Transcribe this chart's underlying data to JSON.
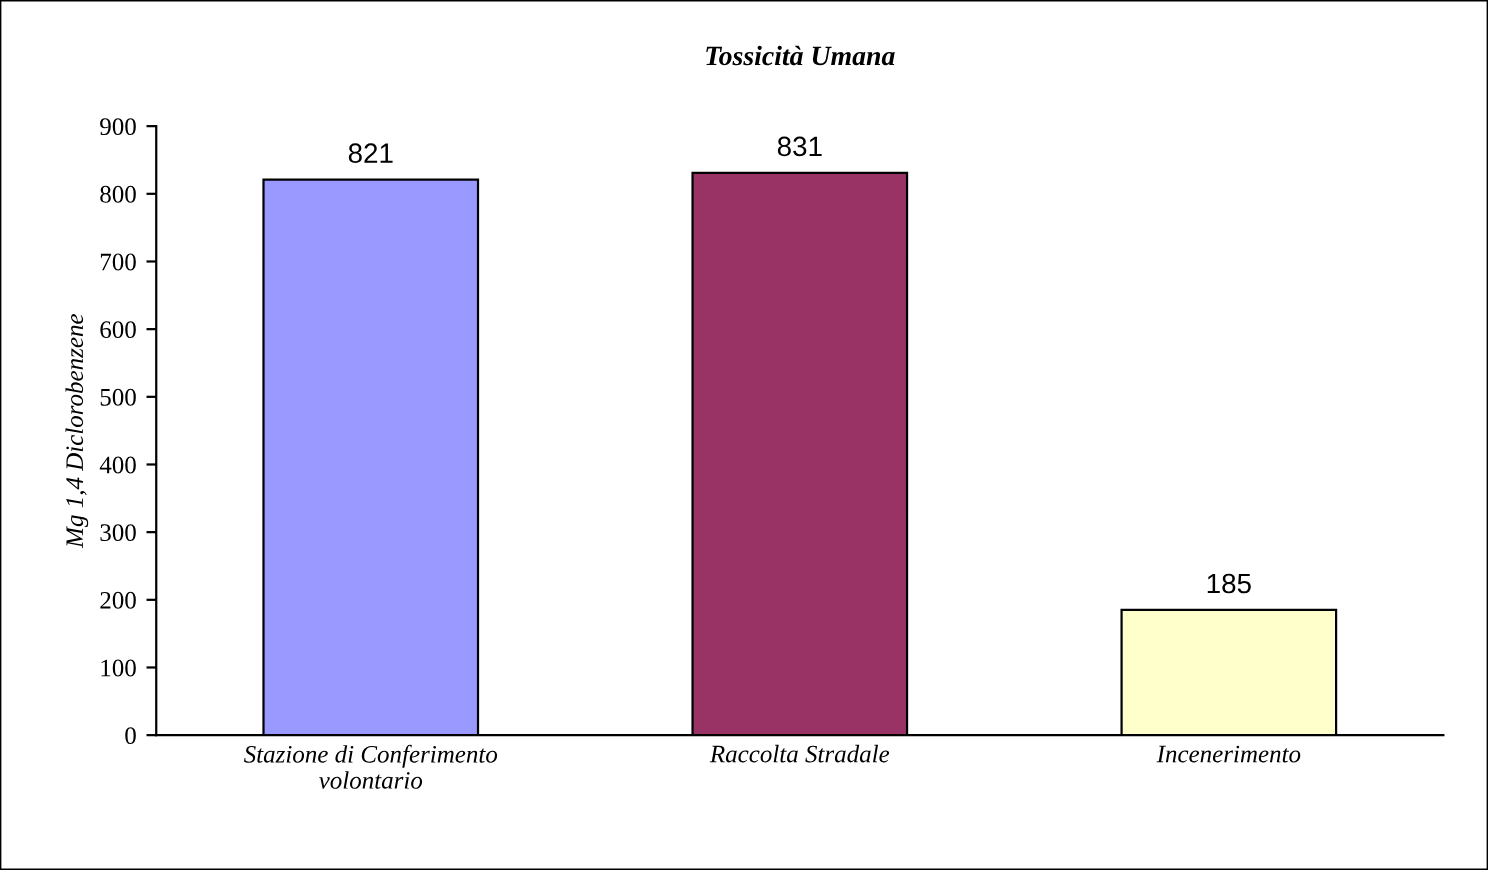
{
  "chart_data": {
    "type": "bar",
    "title": "Tossicità Umana",
    "ylabel": "Mg 1,4 Diclorobenzene",
    "categories": [
      "Stazione di Conferimento\nvolontario",
      "Raccolta Stradale",
      "Incenerimento"
    ],
    "values": [
      821,
      831,
      185
    ],
    "colors": [
      "#9999ff",
      "#993366",
      "#ffffcc"
    ],
    "ylim": [
      0,
      900
    ],
    "yticks": [
      0,
      100,
      200,
      300,
      400,
      500,
      600,
      700,
      800,
      900
    ],
    "data_labels": true,
    "grid": false,
    "legend": false
  }
}
